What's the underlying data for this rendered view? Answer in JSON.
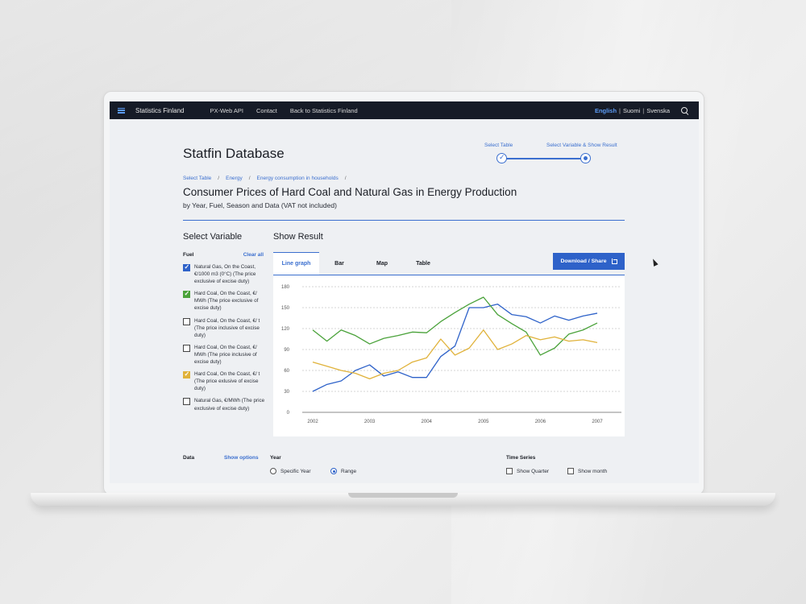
{
  "nav": {
    "brand": "Statistics Finland",
    "links": [
      "PX-Web API",
      "Contact",
      "Back to Statistics Finland"
    ],
    "lang_active": "English",
    "lang_sep": "|",
    "lang_fi": "Suomi",
    "lang_sv": "Svenska"
  },
  "page": {
    "title": "Statfin Database",
    "steps": [
      "Select Table",
      "Select Variable & Show Result"
    ],
    "breadcrumb": [
      "Select Table",
      "Energy",
      "Energy consumption in households"
    ],
    "breadcrumb_sep": "/",
    "table_title": "Consumer Prices of Hard Coal and Natural Gas in Energy Production",
    "table_subtitle": "by Year, Fuel, Season and Data (VAT not included)"
  },
  "variables": {
    "heading": "Select Variable",
    "group_label": "Fuel",
    "clear_all": "Clear all",
    "fuels": [
      {
        "label": "Natural Gas, On the Coast, €/1000 m3 (0°C)  (The price exclusive of excise duty)",
        "checked": true,
        "color": "#2e62c9"
      },
      {
        "label": "Hard Coal, On the Coast, €/ MWh (The price exclusive of excise duty)",
        "checked": true,
        "color": "#4aa23a"
      },
      {
        "label": "Hard Coal, On the Coast, €/ t (The price inclusive of excise duty)",
        "checked": false,
        "color": ""
      },
      {
        "label": "Hard Coal, On the Coast, €/ MWh (The price inclusive of excise duty)",
        "checked": false,
        "color": ""
      },
      {
        "label": "Hard Coal, On the Coast, €/ t (The price exlusive of excise duty)",
        "checked": true,
        "color": "#e0b23a"
      },
      {
        "label": "Natural Gas, €/MWh  (The price exclusive of excise duty)",
        "checked": false,
        "color": ""
      }
    ]
  },
  "result": {
    "heading": "Show Result",
    "tabs": [
      "Line graph",
      "Bar",
      "Map",
      "Table"
    ],
    "active_tab": "Line graph",
    "download_label": "Download / Share"
  },
  "chart_data": {
    "type": "line",
    "x": [
      2002,
      2002.25,
      2002.5,
      2002.75,
      2003,
      2003.25,
      2003.5,
      2003.75,
      2004,
      2004.25,
      2004.5,
      2004.75,
      2005,
      2005.25,
      2005.5,
      2005.75,
      2006,
      2006.25,
      2006.5,
      2006.75,
      2007
    ],
    "x_ticks": [
      "2002",
      "2003",
      "2004",
      "2005",
      "2006",
      "2007"
    ],
    "y_ticks": [
      "0",
      "30",
      "60",
      "90",
      "120",
      "150",
      "180"
    ],
    "ylim": [
      0,
      180
    ],
    "grid": true,
    "series": [
      {
        "color": "#2e62c9",
        "values": [
          30,
          40,
          45,
          60,
          68,
          52,
          58,
          50,
          50,
          80,
          95,
          150,
          150,
          155,
          140,
          137,
          128,
          138,
          132,
          138,
          142
        ]
      },
      {
        "color": "#4aa23a",
        "values": [
          118,
          102,
          118,
          110,
          98,
          106,
          110,
          115,
          114,
          130,
          143,
          155,
          165,
          140,
          127,
          115,
          82,
          92,
          112,
          118,
          128
        ]
      },
      {
        "color": "#e0b23a",
        "values": [
          72,
          66,
          60,
          56,
          48,
          56,
          60,
          72,
          78,
          105,
          82,
          92,
          118,
          90,
          98,
          110,
          104,
          108,
          102,
          104,
          100
        ]
      }
    ]
  },
  "bottom": {
    "data_label": "Data",
    "show_options": "Show options",
    "year_label": "Year",
    "year_options": [
      "Specific Year",
      "Range"
    ],
    "year_selected": "Range",
    "time_series_label": "Time Series",
    "time_options": [
      "Show Quarter",
      "Show month"
    ]
  }
}
